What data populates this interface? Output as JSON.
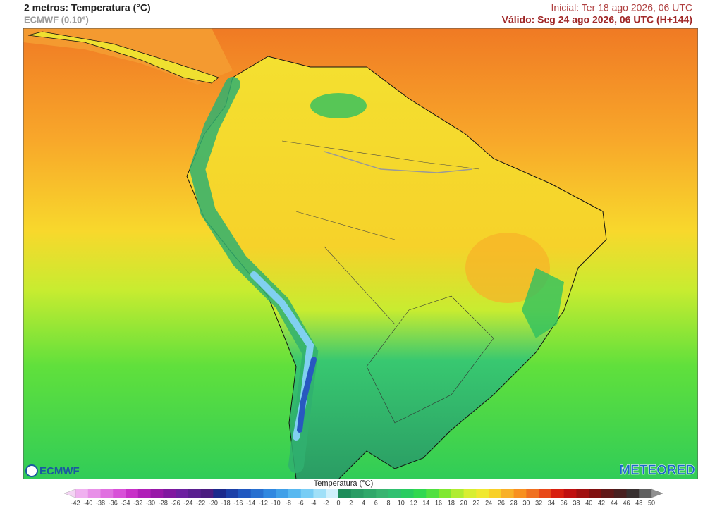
{
  "header": {
    "title": "2 metros: Temperatura (°C)",
    "model": "ECMWF (0.10°)",
    "initial": "Inicial: Ter 18 ago 2026, 06 UTC",
    "valid": "Válido: Seg 24 ago 2026, 06 UTC (H+144)"
  },
  "logos": {
    "left": "ECMWF",
    "right": "METEORED"
  },
  "legend": {
    "title": "Temperatura (°C)",
    "ticks": [
      -42,
      -40,
      -38,
      -36,
      -34,
      -32,
      -30,
      -28,
      -26,
      -24,
      -22,
      -20,
      -18,
      -16,
      -14,
      -12,
      -10,
      -8,
      -6,
      -4,
      -2,
      0,
      2,
      4,
      6,
      8,
      10,
      12,
      14,
      16,
      18,
      20,
      22,
      24,
      26,
      28,
      30,
      32,
      34,
      36,
      38,
      40,
      42,
      44,
      46,
      48,
      50
    ],
    "below_color": "#f4d4f4",
    "above_color": "#909090",
    "colors": [
      "#f0b0f0",
      "#e890e8",
      "#e070e0",
      "#d850d8",
      "#c830c8",
      "#b020b8",
      "#9818a8",
      "#8018a0",
      "#6c20a0",
      "#5a2090",
      "#4a1c80",
      "#1c2a8c",
      "#1c40a8",
      "#2058c0",
      "#2870d0",
      "#3088e0",
      "#40a0e8",
      "#58b8f0",
      "#78cdf5",
      "#a0e0f8",
      "#d0f0fc",
      "#1e8c5a",
      "#2a9c64",
      "#30a86a",
      "#38b470",
      "#30c070",
      "#28cc60",
      "#30d850",
      "#50e040",
      "#80e830",
      "#b0ec30",
      "#d8ee30",
      "#f0e830",
      "#f8d028",
      "#f8b028",
      "#f89020",
      "#f07020",
      "#e84818",
      "#d82010",
      "#c01010",
      "#a01010",
      "#801010",
      "#601818",
      "#482020",
      "#383030",
      "#606060"
    ]
  }
}
